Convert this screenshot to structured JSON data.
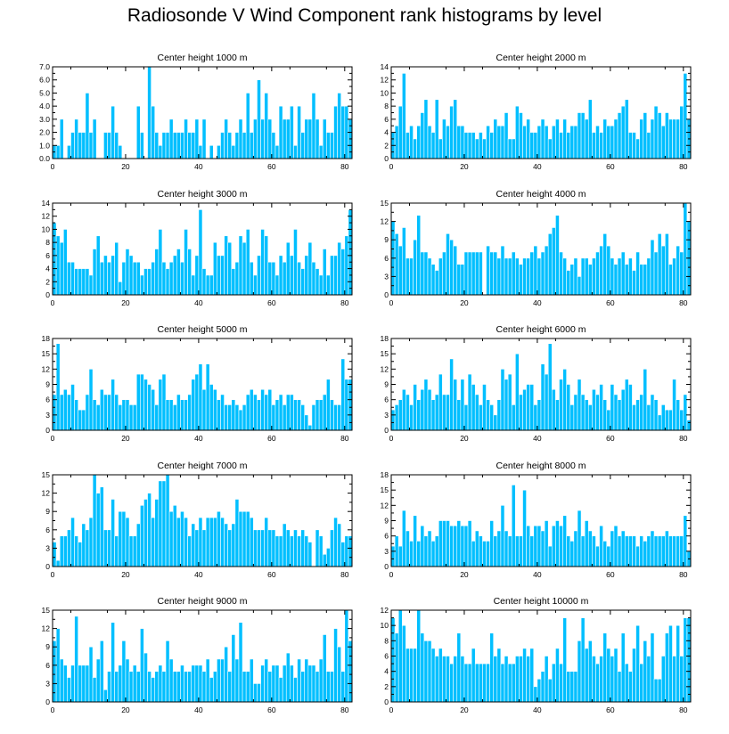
{
  "title": "Radiosonde V Wind Component rank histograms by level",
  "colors": {
    "bar": "#00bfff",
    "bar_edge": "#ffffff",
    "axis": "#000000"
  },
  "chart_data": [
    {
      "type": "bar",
      "title": "Center height 1000 m",
      "xlim": [
        0,
        82
      ],
      "ylim": [
        0,
        7
      ],
      "xticks": [
        0,
        20,
        40,
        60,
        80
      ],
      "yticks": [
        0,
        1,
        2,
        3,
        4,
        5,
        6,
        7
      ],
      "ytick_labels": [
        "0.0",
        "1.0",
        "2.0",
        "3.0",
        "4.0",
        "5.0",
        "6.0",
        "7.0"
      ],
      "values": [
        1,
        1,
        3,
        0,
        1,
        2,
        3,
        2,
        2,
        5,
        2,
        3,
        0,
        0,
        2,
        2,
        4,
        2,
        1,
        0,
        0,
        0,
        0,
        4,
        2,
        0,
        7,
        4,
        2,
        1,
        2,
        2,
        3,
        2,
        2,
        2,
        3,
        2,
        2,
        3,
        1,
        3,
        0,
        1,
        0,
        1,
        2,
        3,
        2,
        1,
        2,
        3,
        2,
        5,
        2,
        3,
        6,
        3,
        5,
        3,
        2,
        1,
        4,
        3,
        3,
        4,
        1,
        4,
        2,
        3,
        3,
        5,
        3,
        1,
        3,
        2,
        2,
        4,
        5,
        4,
        4,
        3
      ]
    },
    {
      "type": "bar",
      "title": "Center height 2000 m",
      "xlim": [
        0,
        82
      ],
      "ylim": [
        0,
        14
      ],
      "xticks": [
        0,
        20,
        40,
        60,
        80
      ],
      "yticks": [
        0,
        2,
        4,
        6,
        8,
        10,
        12,
        14
      ],
      "ytick_labels": [
        "0",
        "2",
        "4",
        "6",
        "8",
        "10",
        "12",
        "14"
      ],
      "values": [
        4,
        5,
        8,
        13,
        4,
        5,
        3,
        5,
        7,
        9,
        5,
        4,
        9,
        3,
        6,
        5,
        8,
        9,
        5,
        5,
        4,
        4,
        4,
        3,
        4,
        3,
        5,
        4,
        6,
        5,
        5,
        7,
        3,
        3,
        8,
        7,
        5,
        6,
        4,
        4,
        5,
        6,
        5,
        3,
        5,
        6,
        4,
        6,
        4,
        5,
        5,
        7,
        7,
        6,
        9,
        4,
        5,
        4,
        6,
        5,
        5,
        6,
        7,
        8,
        9,
        4,
        4,
        3,
        6,
        7,
        4,
        6,
        8,
        7,
        5,
        7,
        6,
        6,
        6,
        8,
        13,
        6
      ]
    },
    {
      "type": "bar",
      "title": "Center height 3000 m",
      "xlim": [
        0,
        82
      ],
      "ylim": [
        0,
        14
      ],
      "xticks": [
        0,
        20,
        40,
        60,
        80
      ],
      "yticks": [
        0,
        2,
        4,
        6,
        8,
        10,
        12,
        14
      ],
      "ytick_labels": [
        "0",
        "2",
        "4",
        "6",
        "8",
        "10",
        "12",
        "14"
      ],
      "values": [
        11,
        9,
        8,
        10,
        5,
        5,
        4,
        4,
        4,
        4,
        3,
        7,
        9,
        5,
        6,
        5,
        6,
        8,
        2,
        5,
        7,
        6,
        5,
        5,
        3,
        4,
        4,
        5,
        7,
        10,
        5,
        4,
        5,
        6,
        7,
        5,
        10,
        7,
        3,
        6,
        13,
        4,
        3,
        3,
        8,
        6,
        6,
        9,
        8,
        4,
        5,
        9,
        8,
        10,
        5,
        3,
        6,
        10,
        9,
        5,
        5,
        3,
        6,
        5,
        8,
        6,
        10,
        5,
        4,
        6,
        8,
        5,
        4,
        3,
        7,
        3,
        6,
        6,
        8,
        7,
        9,
        13
      ]
    },
    {
      "type": "bar",
      "title": "Center height 4000 m",
      "xlim": [
        0,
        82
      ],
      "ylim": [
        0,
        15
      ],
      "xticks": [
        0,
        20,
        40,
        60,
        80
      ],
      "yticks": [
        0,
        3,
        6,
        9,
        12,
        15
      ],
      "ytick_labels": [
        "0",
        "3",
        "6",
        "9",
        "12",
        "15"
      ],
      "values": [
        12,
        10,
        8,
        11,
        6,
        6,
        9,
        13,
        7,
        7,
        6,
        5,
        4,
        6,
        7,
        10,
        9,
        8,
        5,
        5,
        7,
        7,
        7,
        7,
        7,
        0,
        8,
        7,
        7,
        6,
        8,
        6,
        6,
        7,
        6,
        5,
        6,
        6,
        7,
        8,
        6,
        7,
        8,
        10,
        11,
        13,
        7,
        6,
        4,
        5,
        6,
        3,
        6,
        6,
        5,
        6,
        7,
        8,
        10,
        8,
        6,
        5,
        6,
        7,
        5,
        6,
        4,
        7,
        5,
        5,
        6,
        9,
        7,
        10,
        8,
        10,
        5,
        6,
        8,
        7,
        15,
        12
      ]
    },
    {
      "type": "bar",
      "title": "Center height 5000 m",
      "xlim": [
        0,
        82
      ],
      "ylim": [
        0,
        18
      ],
      "xticks": [
        0,
        20,
        40,
        60,
        80
      ],
      "yticks": [
        0,
        3,
        6,
        9,
        12,
        15,
        18
      ],
      "ytick_labels": [
        "0",
        "3",
        "6",
        "9",
        "12",
        "15",
        "18"
      ],
      "values": [
        7,
        17,
        7,
        8,
        7,
        9,
        6,
        4,
        4,
        7,
        12,
        6,
        5,
        8,
        7,
        7,
        10,
        7,
        5,
        6,
        6,
        5,
        5,
        11,
        11,
        10,
        9,
        8,
        5,
        10,
        11,
        6,
        6,
        5,
        7,
        6,
        6,
        7,
        10,
        11,
        13,
        8,
        13,
        9,
        8,
        6,
        7,
        5,
        5,
        6,
        5,
        4,
        5,
        7,
        8,
        7,
        6,
        8,
        7,
        8,
        5,
        6,
        7,
        5,
        7,
        7,
        6,
        6,
        5,
        3,
        1,
        5,
        6,
        6,
        7,
        10,
        6,
        5,
        5,
        14,
        10,
        10
      ]
    },
    {
      "type": "bar",
      "title": "Center height 6000 m",
      "xlim": [
        0,
        82
      ],
      "ylim": [
        0,
        18
      ],
      "xticks": [
        0,
        20,
        40,
        60,
        80
      ],
      "yticks": [
        0,
        3,
        6,
        9,
        12,
        15,
        18
      ],
      "ytick_labels": [
        "0",
        "3",
        "6",
        "9",
        "12",
        "15",
        "18"
      ],
      "values": [
        4,
        5,
        6,
        8,
        7,
        5,
        9,
        6,
        8,
        10,
        8,
        6,
        7,
        11,
        7,
        7,
        14,
        10,
        6,
        10,
        5,
        11,
        9,
        7,
        5,
        9,
        6,
        5,
        3,
        6,
        12,
        10,
        11,
        5,
        15,
        7,
        8,
        9,
        9,
        5,
        6,
        13,
        11,
        17,
        8,
        6,
        10,
        12,
        9,
        5,
        7,
        10,
        7,
        6,
        5,
        8,
        7,
        9,
        6,
        4,
        9,
        7,
        6,
        8,
        10,
        9,
        5,
        6,
        7,
        12,
        5,
        7,
        6,
        3,
        5,
        4,
        4,
        10,
        6,
        4,
        7,
        2
      ]
    },
    {
      "type": "bar",
      "title": "Center height 7000 m",
      "xlim": [
        0,
        82
      ],
      "ylim": [
        0,
        15
      ],
      "xticks": [
        0,
        20,
        40,
        60,
        80
      ],
      "yticks": [
        0,
        3,
        6,
        9,
        12,
        15
      ],
      "ytick_labels": [
        "0",
        "3",
        "6",
        "9",
        "12",
        "15"
      ],
      "values": [
        4,
        1,
        5,
        5,
        6,
        8,
        5,
        4,
        7,
        6,
        8,
        15,
        12,
        13,
        6,
        6,
        11,
        5,
        9,
        9,
        8,
        5,
        5,
        7,
        10,
        11,
        12,
        8,
        11,
        14,
        14,
        15,
        9,
        10,
        8,
        9,
        8,
        5,
        7,
        6,
        8,
        6,
        8,
        8,
        8,
        9,
        8,
        7,
        6,
        7,
        11,
        9,
        9,
        9,
        8,
        6,
        6,
        6,
        8,
        6,
        6,
        5,
        5,
        7,
        6,
        5,
        6,
        5,
        6,
        5,
        4,
        0,
        6,
        5,
        2,
        3,
        6,
        8,
        7,
        4,
        5,
        5
      ]
    },
    {
      "type": "bar",
      "title": "Center height 8000 m",
      "xlim": [
        0,
        82
      ],
      "ylim": [
        0,
        18
      ],
      "xticks": [
        0,
        20,
        40,
        60,
        80
      ],
      "yticks": [
        0,
        3,
        6,
        9,
        12,
        15,
        18
      ],
      "ytick_labels": [
        "0",
        "3",
        "6",
        "9",
        "12",
        "15",
        "18"
      ],
      "values": [
        4,
        6,
        4,
        11,
        7,
        5,
        10,
        5,
        8,
        6,
        7,
        5,
        6,
        9,
        9,
        9,
        8,
        8,
        9,
        8,
        8,
        9,
        5,
        7,
        6,
        5,
        5,
        9,
        6,
        7,
        12,
        7,
        6,
        16,
        6,
        6,
        15,
        8,
        6,
        8,
        8,
        7,
        9,
        4,
        8,
        9,
        8,
        10,
        6,
        5,
        7,
        11,
        6,
        9,
        7,
        6,
        4,
        8,
        5,
        4,
        7,
        8,
        6,
        7,
        6,
        6,
        6,
        4,
        6,
        5,
        6,
        7,
        6,
        6,
        6,
        7,
        6,
        6,
        6,
        6,
        10,
        3
      ]
    },
    {
      "type": "bar",
      "title": "Center height 9000 m",
      "xlim": [
        0,
        82
      ],
      "ylim": [
        0,
        15
      ],
      "xticks": [
        0,
        20,
        40,
        60,
        80
      ],
      "yticks": [
        0,
        3,
        6,
        9,
        12,
        15
      ],
      "ytick_labels": [
        "0",
        "3",
        "6",
        "9",
        "12",
        "15"
      ],
      "values": [
        10,
        12,
        7,
        6,
        4,
        6,
        14,
        6,
        6,
        6,
        9,
        4,
        7,
        10,
        2,
        5,
        13,
        5,
        6,
        10,
        7,
        5,
        6,
        5,
        12,
        8,
        5,
        4,
        5,
        6,
        5,
        10,
        7,
        5,
        5,
        6,
        5,
        5,
        6,
        6,
        6,
        5,
        7,
        4,
        5,
        7,
        7,
        9,
        5,
        11,
        7,
        13,
        5,
        5,
        7,
        3,
        3,
        6,
        7,
        5,
        6,
        6,
        4,
        6,
        8,
        6,
        4,
        7,
        5,
        7,
        6,
        6,
        5,
        7,
        11,
        5,
        5,
        12,
        9,
        5,
        15,
        10
      ]
    },
    {
      "type": "bar",
      "title": "Center height 10000 m",
      "xlim": [
        0,
        82
      ],
      "ylim": [
        0,
        12
      ],
      "xticks": [
        0,
        20,
        40,
        60,
        80
      ],
      "yticks": [
        0,
        2,
        4,
        6,
        8,
        10,
        12
      ],
      "ytick_labels": [
        "0",
        "2",
        "4",
        "6",
        "8",
        "10",
        "12"
      ],
      "values": [
        11,
        9,
        12,
        10,
        7,
        7,
        7,
        12,
        9,
        8,
        8,
        7,
        6,
        7,
        6,
        6,
        5,
        6,
        9,
        6,
        5,
        5,
        7,
        5,
        5,
        5,
        5,
        9,
        6,
        7,
        5,
        6,
        5,
        5,
        6,
        6,
        7,
        6,
        7,
        2,
        3,
        4,
        6,
        3,
        5,
        7,
        5,
        11,
        4,
        4,
        4,
        8,
        11,
        7,
        8,
        6,
        5,
        6,
        9,
        7,
        6,
        7,
        4,
        9,
        5,
        4,
        7,
        10,
        5,
        8,
        6,
        9,
        3,
        3,
        6,
        9,
        10,
        6,
        10,
        6,
        11,
        11
      ]
    }
  ]
}
